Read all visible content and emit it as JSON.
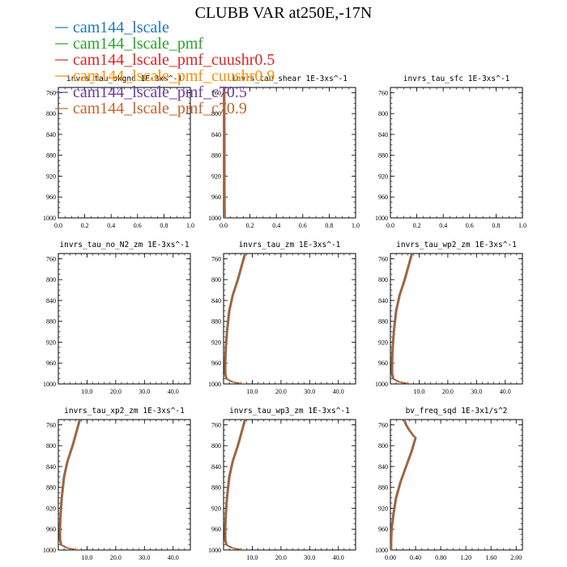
{
  "figure": {
    "title": "CLUBB VAR at250E,-17N"
  },
  "legend": [
    {
      "name": "cam144_lscale",
      "color": "#1f77b4"
    },
    {
      "name": "cam144_lscale_pmf",
      "color": "#2ca02c"
    },
    {
      "name": "cam144_lscale_pmf_cuushr0.5",
      "color": "#d62728"
    },
    {
      "name": "cam144_lscale_pmf_cuushr0.9",
      "color": "#ff8c00"
    },
    {
      "name": "cam144_lscale_pmf_c70.5",
      "color": "#6a3d9a"
    },
    {
      "name": "cam144_lscale_pmf_c70.9",
      "color": "#c0642d"
    }
  ],
  "chart_data": [
    {
      "type": "line",
      "title": "invrs_tau_bkgnd   1E-3xs^-1",
      "xticks": [
        "0.0",
        "0.2",
        "0.4",
        "0.6",
        "0.8",
        "1.0"
      ],
      "xlim": [
        0,
        1
      ],
      "yticks": [
        "760",
        "800",
        "840",
        "880",
        "920",
        "960",
        "1000"
      ],
      "ylim": [
        750,
        1000
      ],
      "y_inverted": true,
      "series": []
    },
    {
      "type": "line",
      "title": "invrs_tau_shear   1E-3xs^-1",
      "xticks": [
        "0.0",
        "0.2",
        "0.4",
        "0.6",
        "0.8",
        "1.0"
      ],
      "xlim": [
        0,
        1
      ],
      "yticks": [
        "760",
        "800",
        "840",
        "880",
        "920",
        "960",
        "1000"
      ],
      "ylim": [
        750,
        1000
      ],
      "y_inverted": true,
      "series": [
        {
          "x": [
            0.005,
            0.005,
            0.006,
            0.006,
            0.007,
            0.008,
            0.009
          ],
          "y": [
            750,
            800,
            850,
            900,
            950,
            990,
            1000
          ]
        }
      ]
    },
    {
      "type": "line",
      "title": "invrs_tau_sfc   1E-3xs^-1",
      "xticks": [
        "0.0",
        "0.2",
        "0.4",
        "0.6",
        "0.8",
        "1.0"
      ],
      "xlim": [
        0,
        1
      ],
      "yticks": [
        "760",
        "800",
        "840",
        "880",
        "920",
        "960",
        "1000"
      ],
      "ylim": [
        750,
        1000
      ],
      "y_inverted": true,
      "series": []
    },
    {
      "type": "line",
      "title": "invrs_tau_no_N2_zm   1E-3xs^-1",
      "xticks": [
        "10.0",
        "20.0",
        "30.0",
        "40.0"
      ],
      "xlim": [
        0,
        46
      ],
      "yticks": [
        "760",
        "800",
        "840",
        "880",
        "920",
        "960",
        "1000"
      ],
      "ylim": [
        750,
        1000
      ],
      "y_inverted": true,
      "series": []
    },
    {
      "type": "line",
      "title": "invrs_tau_zm   1E-3xs^-1",
      "xticks": [
        "10.0",
        "20.0",
        "30.0",
        "40.0"
      ],
      "xlim": [
        0,
        46
      ],
      "yticks": [
        "760",
        "800",
        "840",
        "880",
        "920",
        "960",
        "1000"
      ],
      "ylim": [
        750,
        1000
      ],
      "y_inverted": true,
      "series": [
        {
          "x": [
            7.5,
            6.5,
            5.0,
            3.2,
            2.0,
            1.2,
            0.8,
            0.6,
            0.6,
            1.0,
            3.0,
            7.0
          ],
          "y": [
            750,
            770,
            800,
            830,
            860,
            900,
            930,
            960,
            980,
            990,
            996,
            1000
          ]
        }
      ]
    },
    {
      "type": "line",
      "title": "invrs_tau_wp2_zm   1E-3xs^-1",
      "xticks": [
        "10.0",
        "20.0",
        "30.0",
        "40.0"
      ],
      "xlim": [
        0,
        46
      ],
      "yticks": [
        "760",
        "800",
        "840",
        "880",
        "920",
        "960",
        "1000"
      ],
      "ylim": [
        750,
        1000
      ],
      "y_inverted": true,
      "series": [
        {
          "x": [
            7.5,
            6.5,
            5.0,
            3.2,
            2.0,
            1.2,
            0.8,
            0.6,
            0.6,
            1.0,
            3.0,
            7.0
          ],
          "y": [
            750,
            770,
            800,
            830,
            860,
            900,
            930,
            960,
            980,
            990,
            996,
            1000
          ]
        }
      ]
    },
    {
      "type": "line",
      "title": "invrs_tau_xp2_zm   1E-3xs^-1",
      "xticks": [
        "10.0",
        "20.0",
        "30.0",
        "40.0"
      ],
      "xlim": [
        0,
        46
      ],
      "yticks": [
        "760",
        "800",
        "840",
        "880",
        "920",
        "960",
        "1000"
      ],
      "ylim": [
        750,
        1000
      ],
      "y_inverted": true,
      "series": [
        {
          "x": [
            7.5,
            6.5,
            5.0,
            3.2,
            2.0,
            1.2,
            0.8,
            0.6,
            0.6,
            1.0,
            3.0,
            7.0
          ],
          "y": [
            750,
            770,
            800,
            830,
            860,
            900,
            930,
            960,
            980,
            990,
            996,
            1000
          ]
        }
      ]
    },
    {
      "type": "line",
      "title": "invrs_tau_wp3_zm   1E-3xs^-1",
      "xticks": [
        "10.0",
        "20.0",
        "30.0",
        "40.0"
      ],
      "xlim": [
        0,
        46
      ],
      "yticks": [
        "760",
        "800",
        "840",
        "880",
        "920",
        "960",
        "1000"
      ],
      "ylim": [
        750,
        1000
      ],
      "y_inverted": true,
      "series": [
        {
          "x": [
            7.5,
            6.5,
            5.0,
            3.2,
            2.0,
            1.2,
            0.8,
            0.6,
            0.6,
            1.0,
            3.0,
            7.0
          ],
          "y": [
            750,
            770,
            800,
            830,
            860,
            900,
            930,
            960,
            980,
            990,
            996,
            1000
          ]
        }
      ]
    },
    {
      "type": "line",
      "title": "bv_freq_sqd   1E-3x1/s^2",
      "xticks": [
        "0.00",
        "0.40",
        "0.80",
        "1.20",
        "1.60",
        "2.00"
      ],
      "xlim": [
        0,
        2.1
      ],
      "yticks": [
        "760",
        "800",
        "840",
        "880",
        "920",
        "960",
        "1000"
      ],
      "ylim": [
        750,
        1000
      ],
      "y_inverted": true,
      "series": [
        {
          "x": [
            0.22,
            0.25,
            0.3,
            0.36,
            0.4,
            0.34,
            0.25,
            0.16,
            0.09,
            0.05,
            0.02,
            0.01,
            0.01
          ],
          "y": [
            750,
            760,
            770,
            780,
            785,
            810,
            840,
            870,
            900,
            930,
            960,
            985,
            1000
          ]
        }
      ]
    }
  ]
}
